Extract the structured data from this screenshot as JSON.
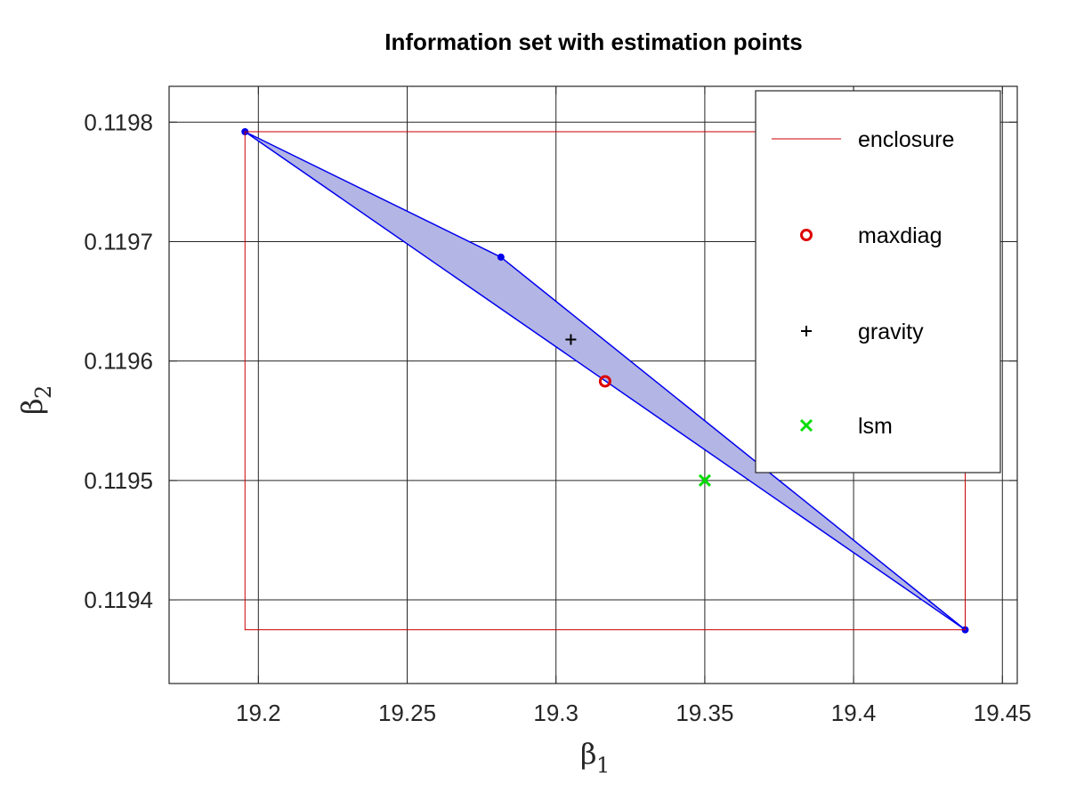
{
  "chart_data": {
    "type": "scatter",
    "title": "Information set with estimation points",
    "xlabel": "β1",
    "ylabel": "β2",
    "xlim": [
      19.17,
      19.455
    ],
    "ylim": [
      0.11933,
      0.11983
    ],
    "x_ticks": [
      19.2,
      19.25,
      19.3,
      19.35,
      19.4,
      19.45
    ],
    "x_tick_labels": [
      "19.2",
      "19.25",
      "19.3",
      "19.35",
      "19.4",
      "19.45"
    ],
    "y_ticks": [
      0.1194,
      0.1195,
      0.1196,
      0.1197,
      0.1198
    ],
    "y_tick_labels": [
      "0.1194",
      "0.1195",
      "0.1196",
      "0.1197",
      "0.1198"
    ],
    "grid": true,
    "legend_position": "top-right",
    "colors": {
      "polygon_fill": "#b3b5e4",
      "polygon_edge": "#0000ee",
      "enclosure": "#cc0000",
      "maxdiag": "#dd0000",
      "gravity": "#000000",
      "lsm": "#00dd00"
    },
    "information_set_polygon": [
      {
        "x": 19.1955,
        "y": 0.119792
      },
      {
        "x": 19.2815,
        "y": 0.119687
      },
      {
        "x": 19.4375,
        "y": 0.119375
      }
    ],
    "series": [
      {
        "name": "enclosure",
        "kind": "rectangle",
        "x": [
          19.1955,
          19.4375
        ],
        "y": [
          0.119375,
          0.119792
        ]
      },
      {
        "name": "maxdiag",
        "marker": "circle",
        "points": [
          {
            "x": 19.3165,
            "y": 0.119583
          }
        ]
      },
      {
        "name": "gravity",
        "marker": "plus",
        "points": [
          {
            "x": 19.305,
            "y": 0.119618
          }
        ]
      },
      {
        "name": "lsm",
        "marker": "x",
        "points": [
          {
            "x": 19.35,
            "y": 0.1195
          }
        ]
      }
    ]
  }
}
